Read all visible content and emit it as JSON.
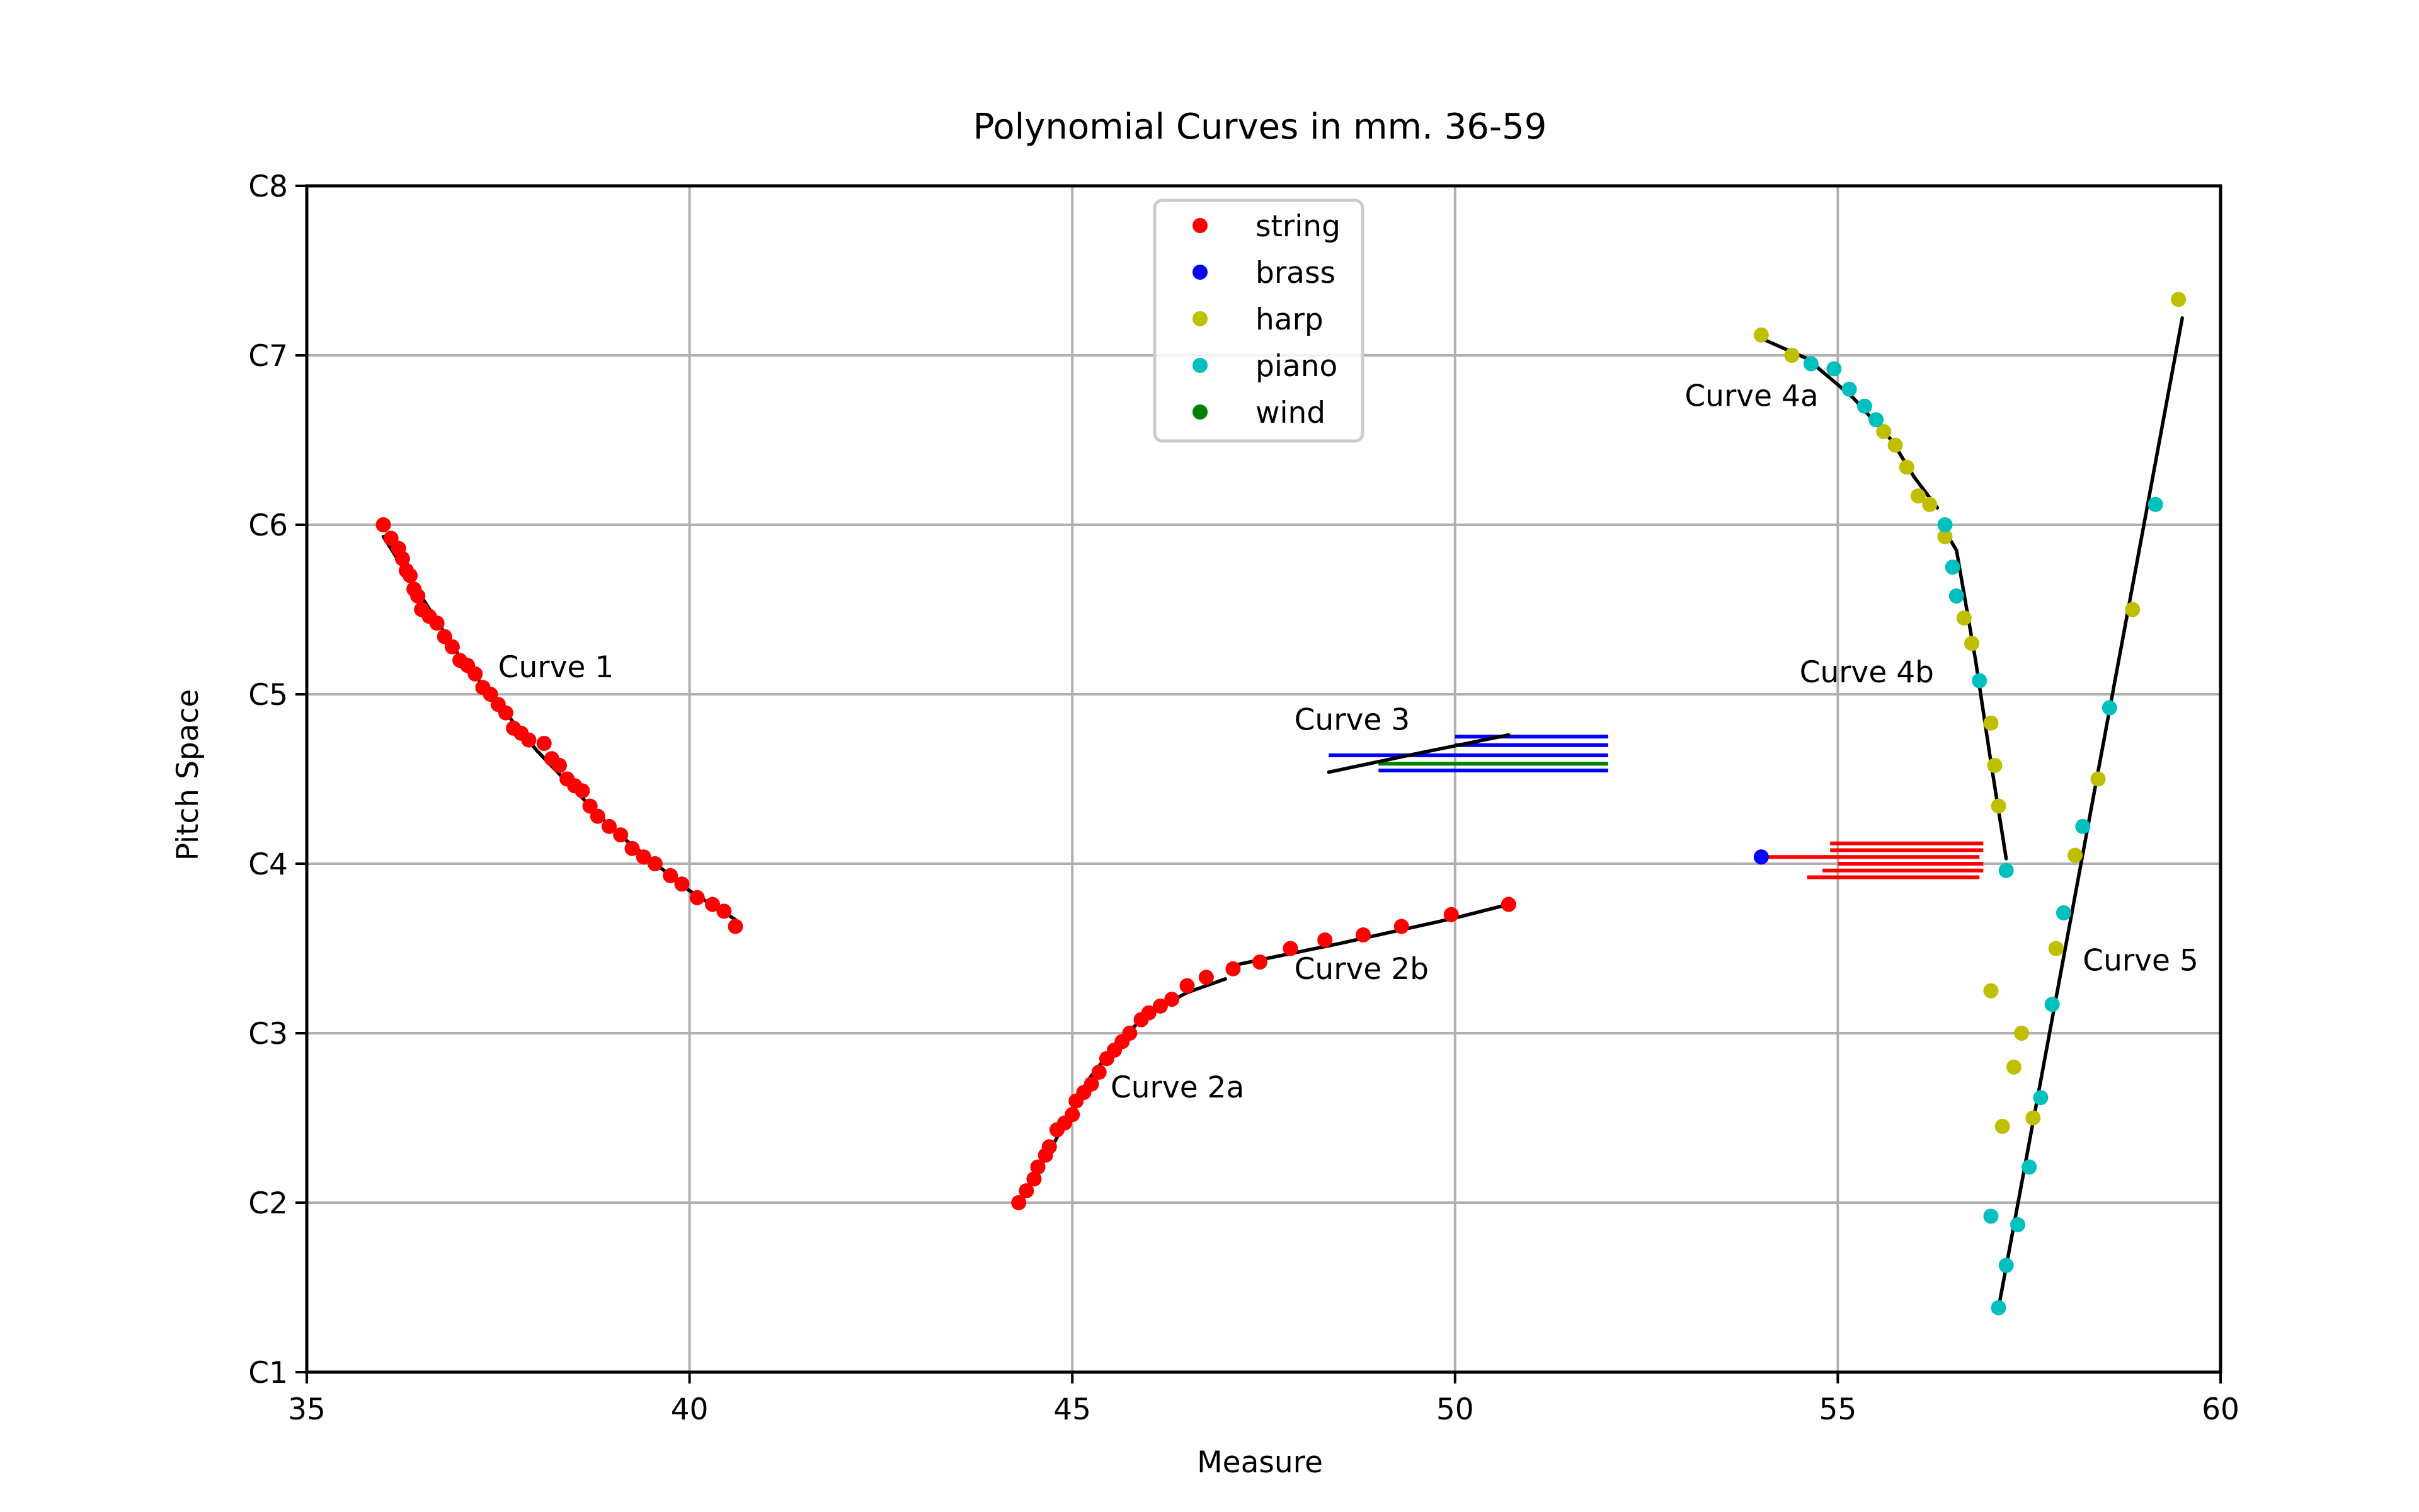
{
  "chart_data": {
    "type": "scatter",
    "title": "Polynomial Curves in mm. 36-59",
    "xlabel": "Measure",
    "ylabel": "Pitch Space",
    "xlim": [
      35,
      60
    ],
    "ylim": [
      1,
      8
    ],
    "grid": true,
    "legend_position": "top-center",
    "xticks": [
      35,
      40,
      45,
      50,
      55,
      60
    ],
    "xtick_labels": [
      "35",
      "40",
      "45",
      "50",
      "55",
      "60"
    ],
    "yticks": [
      1,
      2,
      3,
      4,
      5,
      6,
      7,
      8
    ],
    "ytick_labels": [
      "C1",
      "C2",
      "C3",
      "C4",
      "C5",
      "C6",
      "C7",
      "C8"
    ],
    "colors": {
      "string": "#ff0000",
      "brass": "#0000ff",
      "harp": "#bfbf00",
      "piano": "#00bfbf",
      "wind": "#008000",
      "curve": "#000000",
      "grid": "#b0b0b0"
    },
    "series": [
      {
        "name": "string",
        "color": "#ff0000",
        "points": [
          [
            36.0,
            6.0
          ],
          [
            36.1,
            5.92
          ],
          [
            36.2,
            5.86
          ],
          [
            36.25,
            5.8
          ],
          [
            36.3,
            5.73
          ],
          [
            36.35,
            5.7
          ],
          [
            36.4,
            5.62
          ],
          [
            36.45,
            5.58
          ],
          [
            36.5,
            5.5
          ],
          [
            36.6,
            5.46
          ],
          [
            36.7,
            5.42
          ],
          [
            36.8,
            5.34
          ],
          [
            36.9,
            5.28
          ],
          [
            37.0,
            5.2
          ],
          [
            37.1,
            5.17
          ],
          [
            37.2,
            5.12
          ],
          [
            37.3,
            5.04
          ],
          [
            37.4,
            5.0
          ],
          [
            37.5,
            4.94
          ],
          [
            37.6,
            4.89
          ],
          [
            37.7,
            4.8
          ],
          [
            37.8,
            4.77
          ],
          [
            37.9,
            4.73
          ],
          [
            38.1,
            4.71
          ],
          [
            38.2,
            4.62
          ],
          [
            38.3,
            4.58
          ],
          [
            38.4,
            4.5
          ],
          [
            38.5,
            4.46
          ],
          [
            38.6,
            4.43
          ],
          [
            38.7,
            4.34
          ],
          [
            38.8,
            4.28
          ],
          [
            38.95,
            4.22
          ],
          [
            39.1,
            4.17
          ],
          [
            39.25,
            4.09
          ],
          [
            39.4,
            4.04
          ],
          [
            39.55,
            4.0
          ],
          [
            39.75,
            3.93
          ],
          [
            39.9,
            3.88
          ],
          [
            40.1,
            3.8
          ],
          [
            40.3,
            3.76
          ],
          [
            40.45,
            3.72
          ],
          [
            40.6,
            3.63
          ],
          [
            44.3,
            2.0
          ],
          [
            44.4,
            2.07
          ],
          [
            44.5,
            2.14
          ],
          [
            44.55,
            2.21
          ],
          [
            44.65,
            2.28
          ],
          [
            44.7,
            2.33
          ],
          [
            44.8,
            2.43
          ],
          [
            44.9,
            2.47
          ],
          [
            45.0,
            2.52
          ],
          [
            45.05,
            2.6
          ],
          [
            45.15,
            2.65
          ],
          [
            45.25,
            2.7
          ],
          [
            45.35,
            2.77
          ],
          [
            45.45,
            2.85
          ],
          [
            45.55,
            2.9
          ],
          [
            45.65,
            2.95
          ],
          [
            45.75,
            3.0
          ],
          [
            45.9,
            3.08
          ],
          [
            46.0,
            3.12
          ],
          [
            46.15,
            3.16
          ],
          [
            46.3,
            3.2
          ],
          [
            46.5,
            3.28
          ],
          [
            46.75,
            3.33
          ],
          [
            47.1,
            3.38
          ],
          [
            47.45,
            3.42
          ],
          [
            47.85,
            3.5
          ],
          [
            48.3,
            3.55
          ],
          [
            48.8,
            3.58
          ],
          [
            49.3,
            3.63
          ],
          [
            49.95,
            3.7
          ],
          [
            50.7,
            3.76
          ]
        ]
      },
      {
        "name": "brass",
        "color": "#0000ff",
        "points": [
          [
            54.0,
            4.04
          ]
        ]
      },
      {
        "name": "harp",
        "color": "#bfbf00",
        "points": [
          [
            54.0,
            7.12
          ],
          [
            54.4,
            7.0
          ],
          [
            55.6,
            6.55
          ],
          [
            55.75,
            6.47
          ],
          [
            55.9,
            6.34
          ],
          [
            56.05,
            6.17
          ],
          [
            56.2,
            6.12
          ],
          [
            56.4,
            5.93
          ],
          [
            56.65,
            5.45
          ],
          [
            56.75,
            5.3
          ],
          [
            57.0,
            4.83
          ],
          [
            57.05,
            4.58
          ],
          [
            57.1,
            4.34
          ],
          [
            57.0,
            3.25
          ],
          [
            57.15,
            2.45
          ],
          [
            57.3,
            2.8
          ],
          [
            57.4,
            3.0
          ],
          [
            57.55,
            2.5
          ],
          [
            57.85,
            3.5
          ],
          [
            58.1,
            4.05
          ],
          [
            58.4,
            4.5
          ],
          [
            58.85,
            5.5
          ],
          [
            59.45,
            7.33
          ]
        ]
      },
      {
        "name": "piano",
        "color": "#00bfbf",
        "points": [
          [
            54.65,
            6.95
          ],
          [
            54.95,
            6.92
          ],
          [
            55.15,
            6.8
          ],
          [
            55.35,
            6.7
          ],
          [
            55.5,
            6.62
          ],
          [
            56.4,
            6.0
          ],
          [
            56.5,
            5.75
          ],
          [
            56.55,
            5.58
          ],
          [
            56.85,
            5.08
          ],
          [
            57.2,
            3.96
          ],
          [
            57.1,
            1.38
          ],
          [
            57.2,
            1.63
          ],
          [
            57.0,
            1.92
          ],
          [
            57.35,
            1.87
          ],
          [
            57.5,
            2.21
          ],
          [
            57.65,
            2.62
          ],
          [
            57.8,
            3.17
          ],
          [
            57.95,
            3.71
          ],
          [
            58.2,
            4.22
          ],
          [
            58.55,
            4.92
          ],
          [
            59.15,
            6.12
          ]
        ]
      },
      {
        "name": "wind",
        "color": "#008000",
        "points": []
      }
    ],
    "curves": [
      {
        "label": "Curve 1",
        "x_range": [
          36.0,
          40.6
        ],
        "points": [
          [
            36.0,
            5.93
          ],
          [
            37.0,
            5.22
          ],
          [
            38.0,
            4.67
          ],
          [
            39.0,
            4.2
          ],
          [
            40.0,
            3.84
          ],
          [
            40.6,
            3.67
          ]
        ]
      },
      {
        "label": "Curve 2a",
        "x_range": [
          44.3,
          47.0
        ],
        "points": [
          [
            44.3,
            2.0
          ],
          [
            44.7,
            2.3
          ],
          [
            45.2,
            2.72
          ],
          [
            45.6,
            2.95
          ],
          [
            46.0,
            3.12
          ],
          [
            46.5,
            3.24
          ],
          [
            47.0,
            3.32
          ]
        ]
      },
      {
        "label": "Curve 2b",
        "x_range": [
          47.1,
          50.7
        ],
        "points": [
          [
            47.1,
            3.4
          ],
          [
            48.5,
            3.53
          ],
          [
            50.0,
            3.68
          ],
          [
            50.7,
            3.76
          ]
        ]
      },
      {
        "label": "Curve 3",
        "x_range": [
          48.35,
          50.7
        ],
        "points": [
          [
            48.35,
            4.54
          ],
          [
            49.5,
            4.65
          ],
          [
            50.7,
            4.76
          ]
        ]
      },
      {
        "label": "Curve 4a",
        "x_range": [
          54.0,
          56.3
        ],
        "points": [
          [
            54.0,
            7.1
          ],
          [
            54.6,
            6.98
          ],
          [
            55.2,
            6.75
          ],
          [
            55.7,
            6.5
          ],
          [
            56.0,
            6.28
          ],
          [
            56.3,
            6.1
          ]
        ]
      },
      {
        "label": "Curve 4b",
        "x_range": [
          56.35,
          57.2
        ],
        "points": [
          [
            56.35,
            6.0
          ],
          [
            56.55,
            5.85
          ],
          [
            56.8,
            5.2
          ],
          [
            57.0,
            4.6
          ],
          [
            57.2,
            4.03
          ]
        ]
      },
      {
        "label": "Curve 5",
        "x_range": [
          57.1,
          59.5
        ],
        "points": [
          [
            57.1,
            1.38
          ],
          [
            59.5,
            7.22
          ]
        ]
      }
    ],
    "annotations": [
      {
        "text": "Curve 1",
        "x": 37.5,
        "y": 5.1
      },
      {
        "text": "Curve 2a",
        "x": 45.5,
        "y": 2.62
      },
      {
        "text": "Curve 2b",
        "x": 47.9,
        "y": 3.32
      },
      {
        "text": "Curve 3",
        "x": 47.9,
        "y": 4.79
      },
      {
        "text": "Curve 4a",
        "x": 53.0,
        "y": 6.7
      },
      {
        "text": "Curve 4b",
        "x": 54.5,
        "y": 5.07
      },
      {
        "text": "Curve 5",
        "x": 58.2,
        "y": 3.37
      }
    ],
    "sustain_lines": [
      {
        "color": "#0000ff",
        "x1": 50.0,
        "x2": 52.0,
        "y": 4.75
      },
      {
        "color": "#0000ff",
        "x1": 50.0,
        "x2": 52.0,
        "y": 4.7
      },
      {
        "color": "#0000ff",
        "x1": 48.35,
        "x2": 52.0,
        "y": 4.64
      },
      {
        "color": "#008000",
        "x1": 49.0,
        "x2": 52.0,
        "y": 4.59
      },
      {
        "color": "#0000ff",
        "x1": 49.0,
        "x2": 52.0,
        "y": 4.55
      },
      {
        "color": "#ff0000",
        "x1": 54.0,
        "x2": 56.85,
        "y": 4.04
      },
      {
        "color": "#ff0000",
        "x1": 54.9,
        "x2": 56.9,
        "y": 4.12
      },
      {
        "color": "#ff0000",
        "x1": 54.9,
        "x2": 56.9,
        "y": 4.08
      },
      {
        "color": "#ff0000",
        "x1": 55.0,
        "x2": 56.9,
        "y": 4.0
      },
      {
        "color": "#ff0000",
        "x1": 54.8,
        "x2": 56.9,
        "y": 3.96
      },
      {
        "color": "#ff0000",
        "x1": 54.6,
        "x2": 56.85,
        "y": 3.92
      }
    ]
  }
}
